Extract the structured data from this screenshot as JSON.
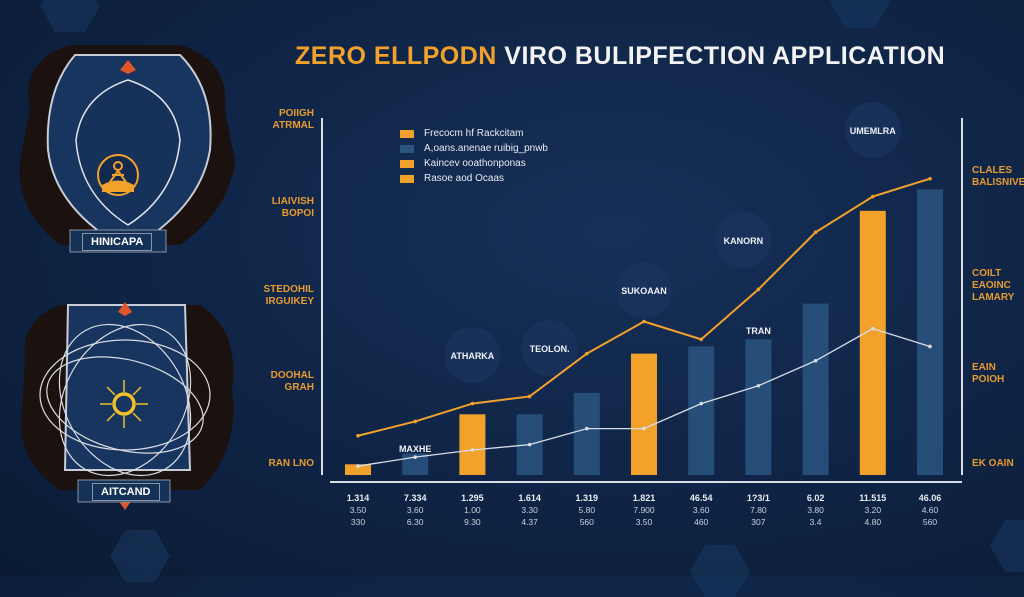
{
  "title": {
    "part1": "ZERO ELLPODN",
    "part2": "VIRO BULIPFECTION APPLICATION"
  },
  "colors": {
    "background": "#0f2445",
    "accent_orange": "#f2a12a",
    "bar_blue": "#2a5580",
    "line_white": "#d7dde6"
  },
  "left_panel": {
    "badge_top": {
      "label": "HINICAPA",
      "icon": "meditating-figure-icon"
    },
    "badge_bottom": {
      "label": "AITCAND",
      "icon": "sun-icon"
    }
  },
  "chart_data": {
    "type": "bar",
    "title": "",
    "xlabel": "",
    "ylabel": "",
    "ylim": [
      0,
      100
    ],
    "grid": false,
    "legend_position": "top-left",
    "legend": [
      {
        "label": "Frecocm hf Rackcitam",
        "color": "#f2a12a"
      },
      {
        "label": "A,oans.anenae ruibig_pnwb",
        "color": "#2a5580"
      },
      {
        "label": "Kaincev ooathonponas",
        "color": "#f2a12a"
      },
      {
        "label": "Rasoe aod Ocaas",
        "color": "#f2a12a"
      }
    ],
    "categories": [
      "1.314",
      "7.334",
      "1.295",
      "1.614",
      "1.319",
      "1.821",
      "46.54",
      "1?3/1",
      "6.02",
      "11.515",
      "46.06"
    ],
    "category_sublabels": [
      [
        "3.50",
        "330"
      ],
      [
        "3.60",
        "6.30"
      ],
      [
        "1.00",
        "9.30"
      ],
      [
        "3.30",
        "4.37"
      ],
      [
        "5.80",
        "560"
      ],
      [
        "7.900",
        "3.50"
      ],
      [
        "3.60",
        "460"
      ],
      [
        "7.80",
        "307"
      ],
      [
        "3.80",
        "3.4"
      ],
      [
        "3.20",
        "4.80"
      ],
      [
        "4.60",
        "560"
      ]
    ],
    "bars": {
      "values": [
        3,
        6,
        17,
        17,
        23,
        34,
        36,
        38,
        48,
        74,
        80
      ],
      "colors": [
        "#f2a12a",
        "#2a5580",
        "#f2a12a",
        "#2a5580",
        "#2a5580",
        "#f2a12a",
        "#2a5580",
        "#2a5580",
        "#2a5580",
        "#f2a12a",
        "#2a5580"
      ]
    },
    "series": [
      {
        "type": "line",
        "color": "#f2a12a",
        "values": [
          11,
          15,
          20,
          22,
          34,
          43,
          38,
          52,
          68,
          78,
          83
        ]
      },
      {
        "type": "line",
        "color": "#d7dde6",
        "values": [
          2.5,
          5,
          7,
          8.5,
          13,
          13,
          20,
          25,
          32,
          41,
          36
        ]
      }
    ],
    "annotations": [
      {
        "text": "MAXHE",
        "category": 1
      },
      {
        "text": "ATHARKA",
        "category": 2
      },
      {
        "text": "TEOLON.",
        "category": 3
      },
      {
        "text": "SUKOAAN",
        "category": 5
      },
      {
        "text": "TRAN",
        "category": 7
      },
      {
        "text": "KANORN",
        "category": 7
      },
      {
        "text": "UMEMLRA",
        "category": 9
      }
    ],
    "left_axis_labels": [
      "POIIGH ATRMAL",
      "LIAIVISH BOPOI",
      "STEDOHIL IRGUIKEY",
      "DOOHAL GRAH",
      "RAN LNO"
    ],
    "right_axis_labels": [
      "CLALES BALISNIVE",
      "COILT EAOINC LAMARY",
      "EAIN POIOH",
      "EK OAIN"
    ]
  }
}
